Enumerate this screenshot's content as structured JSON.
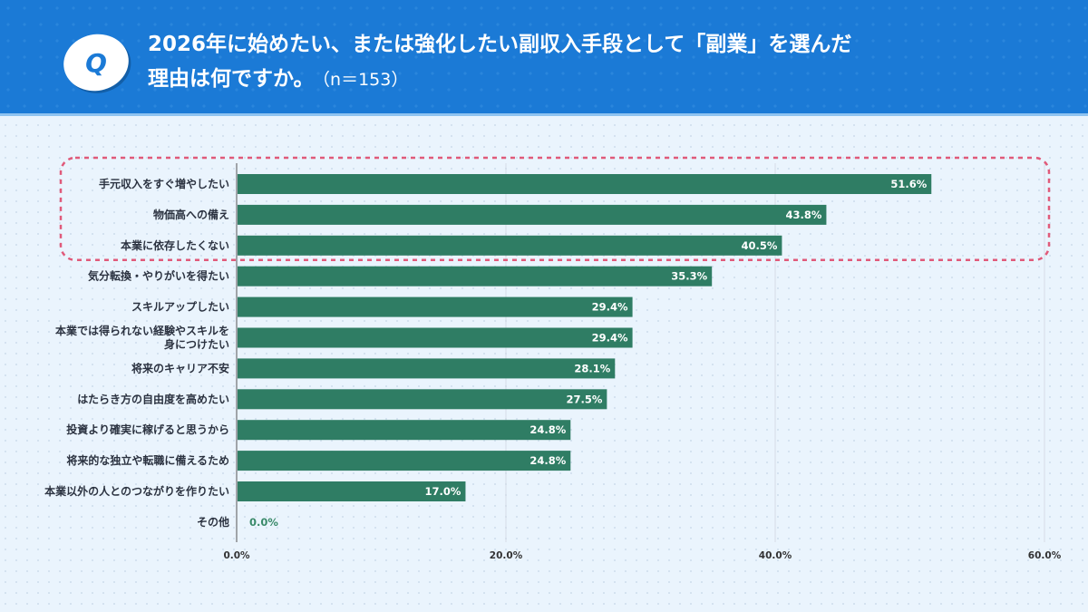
{
  "header": {
    "badge": "Q",
    "title_line1": "2026年に始めたい、または強化したい副収入手段として「副業」を選んだ",
    "title_line2": "理由は何ですか。",
    "n_label": "（n＝153）"
  },
  "colors": {
    "header": "#1b7ad6",
    "bar": "#2f7d64",
    "highlight": "#e05a7a"
  },
  "chart_data": {
    "type": "bar",
    "orientation": "horizontal",
    "categories": [
      "手元収入をすぐ増やしたい",
      "物価高への備え",
      "本業に依存したくない",
      "気分転換・やりがいを得たい",
      "スキルアップしたい",
      "本業では得られない経験やスキルを\n身につけたい",
      "将来のキャリア不安",
      "はたらき方の自由度を高めたい",
      "投資より確実に稼げると思うから",
      "将来的な独立や転職に備えるため",
      "本業以外の人とのつながりを作りたい",
      "その他"
    ],
    "values": [
      51.6,
      43.8,
      40.5,
      35.3,
      29.4,
      29.4,
      28.1,
      27.5,
      24.8,
      24.8,
      17.0,
      0.0
    ],
    "value_labels": [
      "51.6%",
      "43.8%",
      "40.5%",
      "35.3%",
      "29.4%",
      "29.4%",
      "28.1%",
      "27.5%",
      "24.8%",
      "24.8%",
      "17.0%",
      "0.0%"
    ],
    "xlim": [
      0,
      60
    ],
    "ticks": [
      0,
      20,
      40,
      60
    ],
    "tick_labels": [
      "0.0%",
      "20.0%",
      "40.0%",
      "60.0%"
    ],
    "grid": true,
    "highlighted_categories": [
      0,
      1,
      2
    ]
  }
}
